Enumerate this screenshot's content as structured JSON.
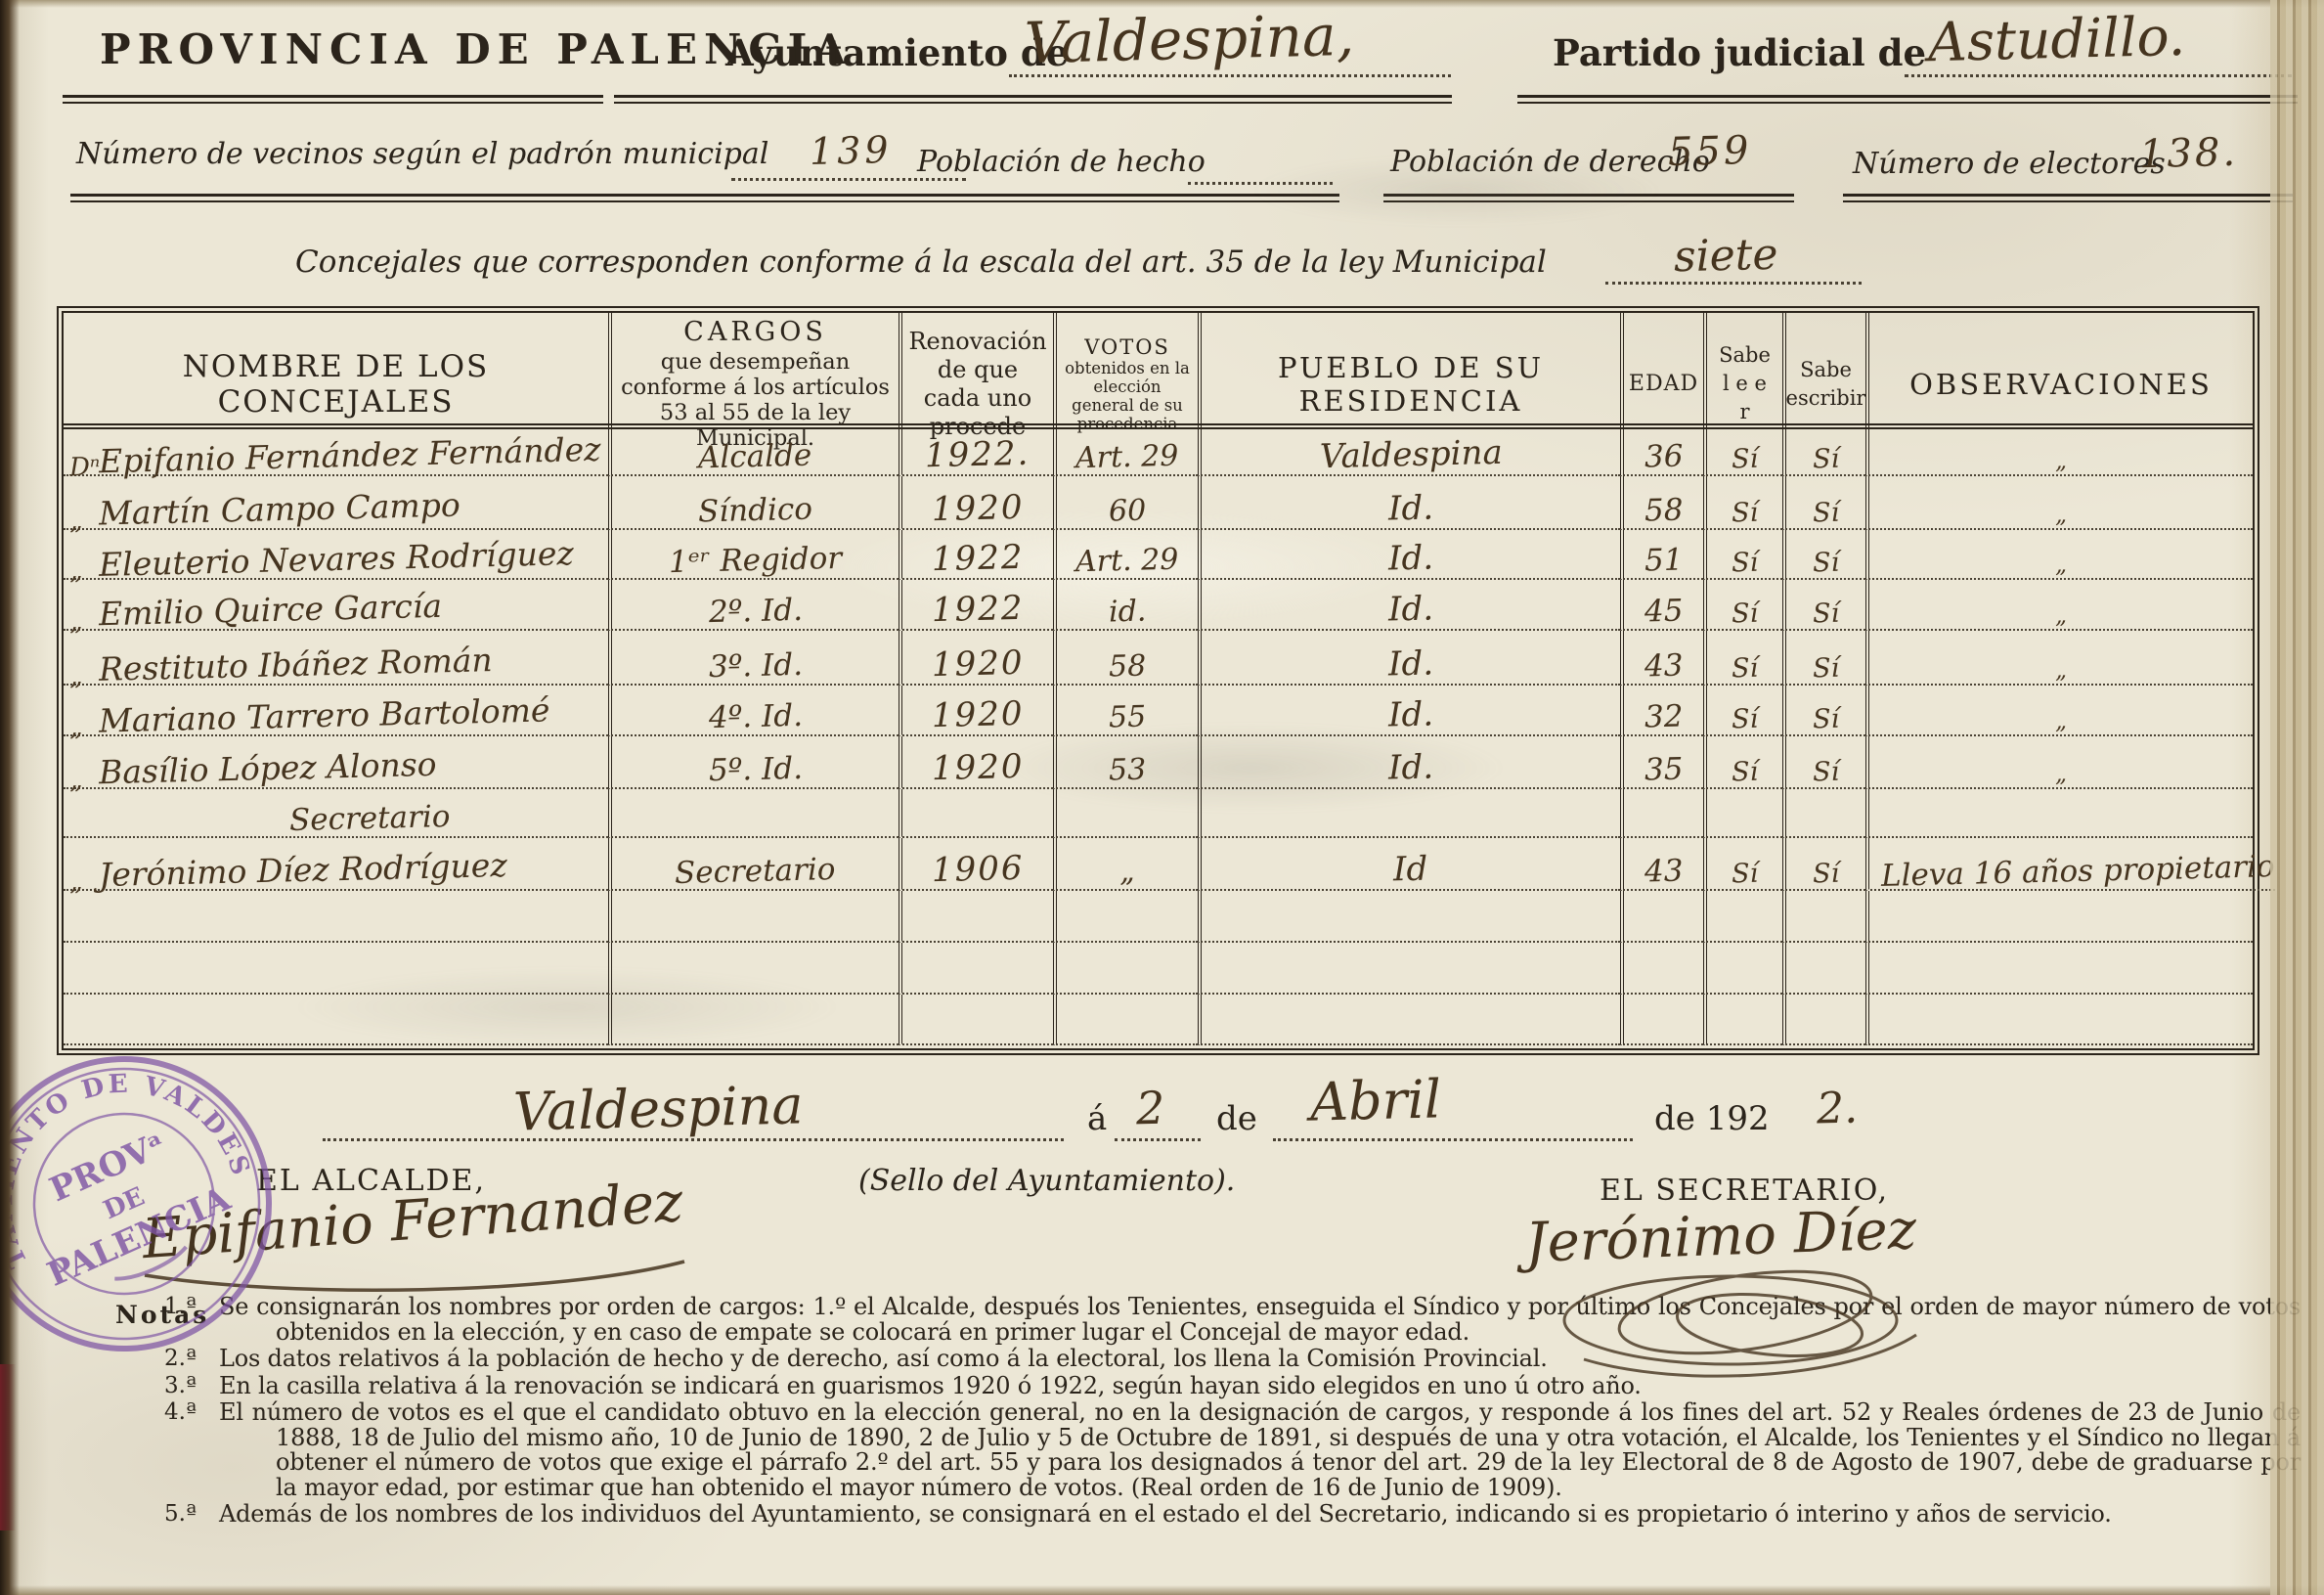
{
  "colors": {
    "paper": "#e9e4d3",
    "ink": "#2b241b",
    "hand_ink": "#45341f",
    "stamp": "#7c52a3"
  },
  "header": {
    "province_title": "PROVINCIA DE PALENCIA",
    "ayuntamiento_label": "Ayuntamiento de",
    "ayuntamiento_value": "Valdespina,",
    "partido_label": "Partido judicial de",
    "partido_value": "Astudillo.",
    "vecinos_label": "Número de vecinos según el padrón municipal",
    "vecinos_value": "139",
    "hecho_label": "Población de hecho",
    "hecho_value": "",
    "derecho_label": "Población de derecho",
    "derecho_value": "559",
    "electores_label": "Número de electores",
    "electores_value": "138.",
    "escala_label": "Concejales que corresponden conforme á la escala del art. 35 de la ley Municipal",
    "escala_value": "siete"
  },
  "table": {
    "headers": {
      "nombre": "NOMBRE DE LOS CONCEJALES",
      "cargos_title": "CARGOS",
      "cargos_sub": "que desempeñan conforme á los artículos 53 al 55 de la ley Municipal.",
      "renovacion": "Renovación de que cada uno procede",
      "votos_title": "VOTOS",
      "votos_sub": "obtenidos en la elección general de su procedencia",
      "pueblo": "PUEBLO DE SU RESIDENCIA",
      "edad": "EDAD",
      "sabe_leer_1": "Sabe",
      "sabe_leer_2": "l e e r",
      "sabe_escribir_1": "Sabe",
      "sabe_escribir_2": "escribir",
      "observaciones": "OBSERVACIONES"
    },
    "rows": [
      {
        "prefix": "Dⁿ",
        "nombre": "Epifanio Fernández Fernández",
        "cargo": "Alcalde",
        "renovacion": "1922.",
        "votos": "Art. 29",
        "residencia": "Valdespina",
        "edad": "36",
        "sabe_leer": "Sí",
        "sabe_escribir": "Sí",
        "observaciones": "„"
      },
      {
        "prefix": "„",
        "nombre": "Martín Campo Campo",
        "cargo": "Síndico",
        "renovacion": "1920",
        "votos": "60",
        "residencia": "Id.",
        "edad": "58",
        "sabe_leer": "Sí",
        "sabe_escribir": "Sí",
        "observaciones": "„"
      },
      {
        "prefix": "„",
        "nombre": "Eleuterio Nevares Rodríguez",
        "cargo": "1ᵉʳ Regidor",
        "renovacion": "1922",
        "votos": "Art. 29",
        "residencia": "Id.",
        "edad": "51",
        "sabe_leer": "Sí",
        "sabe_escribir": "Sí",
        "observaciones": "„"
      },
      {
        "prefix": "„",
        "nombre": "Emilio Quirce García",
        "cargo": "2º. Id.",
        "renovacion": "1922",
        "votos": "id.",
        "residencia": "Id.",
        "edad": "45",
        "sabe_leer": "Sí",
        "sabe_escribir": "Sí",
        "observaciones": "„"
      },
      {
        "prefix": "„",
        "nombre": "Restituto Ibáñez Román",
        "cargo": "3º. Id.",
        "renovacion": "1920",
        "votos": "58",
        "residencia": "Id.",
        "edad": "43",
        "sabe_leer": "Sí",
        "sabe_escribir": "Sí",
        "observaciones": "„"
      },
      {
        "prefix": "„",
        "nombre": "Mariano Tarrero Bartolomé",
        "cargo": "4º. Id.",
        "renovacion": "1920",
        "votos": "55",
        "residencia": "Id.",
        "edad": "32",
        "sabe_leer": "Sí",
        "sabe_escribir": "Sí",
        "observaciones": "„"
      },
      {
        "prefix": "„",
        "nombre": "Basílio López Alonso",
        "cargo": "5º. Id.",
        "renovacion": "1920",
        "votos": "53",
        "residencia": "Id.",
        "edad": "35",
        "sabe_leer": "Sí",
        "sabe_escribir": "Sí",
        "observaciones": "„"
      },
      {
        "type": "subheading",
        "label": "Secretario"
      },
      {
        "prefix": "„",
        "nombre": "Jerónimo Díez Rodríguez",
        "cargo": "Secretario",
        "renovacion": "1906",
        "votos": "„",
        "residencia": "Id",
        "edad": "43",
        "sabe_leer": "Sí",
        "sabe_escribir": "Sí",
        "observaciones": "Lleva 16 años propietario",
        "obs_wide": true
      },
      {
        "type": "empty"
      },
      {
        "type": "empty"
      },
      {
        "type": "empty"
      }
    ]
  },
  "footer": {
    "place_value": "Valdespina",
    "a_label": "á",
    "day_value": "2",
    "de_label": "de",
    "month_value": "Abril",
    "de192_label": "de 192",
    "year_digit": "2.",
    "alcalde_label": "EL ALCALDE,",
    "alcalde_signature": "Epifanio Fernandez",
    "sello_label": "(Sello del Ayuntamiento).",
    "secretario_label": "EL SECRETARIO,",
    "secretario_signature": "Jerónimo Díez"
  },
  "stamp": {
    "ring_text": "AYUNTAMIENTO DE VALDESPINA",
    "center_line1": "PROVᵃ",
    "center_line2": "DE",
    "center_line3": "PALENCIA"
  },
  "notas": {
    "label": "Notas",
    "items": [
      {
        "num": "1.ª",
        "text": "Se consignarán los nombres por orden de cargos: 1.º el Alcalde, después los Tenientes, enseguida el Síndico y por último los Concejales por el orden de mayor número de votos obtenidos en la elección, y en caso de empate se colocará en primer lugar el Concejal de mayor edad."
      },
      {
        "num": "2.ª",
        "text": "Los datos relativos á la población de hecho y de derecho, así como á la electoral, los llena la Comisión Provincial."
      },
      {
        "num": "3.ª",
        "text": "En la casilla relativa á la renovación se indicará en guarismos 1920 ó 1922, según hayan sido elegidos en uno ú otro año."
      },
      {
        "num": "4.ª",
        "text": "El número de votos es el que el candidato obtuvo en la elección general, no en la designación de cargos, y responde á los fines del art. 52 y Reales órdenes de 23 de Junio de 1888, 18 de Julio del mismo año, 10 de Junio de 1890, 2 de Julio y 5 de Octubre de 1891, si después de una y otra votación, el Alcalde, los Tenientes y el Síndico no llegan á obtener el número de votos que exige el párrafo 2.º del art. 55 y para los designados á tenor del art. 29 de la ley Electoral de 8 de Agosto de 1907, debe de graduarse por la mayor edad, por estimar que han obtenido el mayor número de votos. (Real orden de 16 de Junio de 1909)."
      },
      {
        "num": "5.ª",
        "text": "Además de los nombres de los individuos del Ayuntamiento, se consignará en el estado el del Secretario, indicando si es propietario ó interino y años de servicio."
      }
    ]
  }
}
